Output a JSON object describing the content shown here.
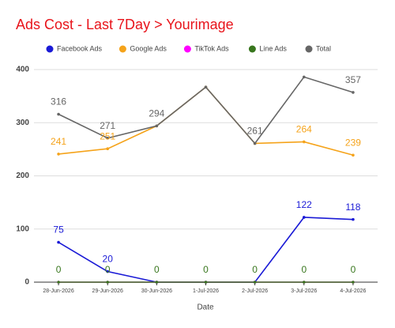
{
  "chart_data": {
    "type": "line",
    "title": "Ads Cost - Last 7Day > Yourimage",
    "x_label": "Date",
    "categories": [
      "28-Jun-2026",
      "29-Jun-2026",
      "30-Jun-2026",
      "1-Jul-2026",
      "2-Jul-2026",
      "3-Jul-2026",
      "4-Jul-2026"
    ],
    "series": [
      {
        "name": "Facebook Ads",
        "color": "#1a1ad6",
        "values": [
          75,
          20,
          0,
          0,
          0,
          122,
          118
        ],
        "value_labels": [
          "75",
          "20",
          null,
          null,
          null,
          "122",
          "118"
        ]
      },
      {
        "name": "Google Ads",
        "color": "#f5a31a",
        "values": [
          241,
          251,
          294,
          367,
          261,
          264,
          239
        ],
        "value_labels": [
          "241",
          "251",
          null,
          null,
          null,
          "264",
          "239"
        ]
      },
      {
        "name": "TikTok Ads",
        "color": "#ff00ff",
        "values": [
          0,
          0,
          0,
          0,
          0,
          0,
          0
        ],
        "value_labels": [
          null,
          null,
          null,
          null,
          null,
          null,
          null
        ]
      },
      {
        "name": "Line Ads",
        "color": "#38761d",
        "values": [
          0,
          0,
          0,
          0,
          0,
          0,
          0
        ],
        "value_labels": [
          "0",
          "0",
          "0",
          "0",
          "0",
          "0",
          "0"
        ]
      },
      {
        "name": "Total",
        "color": "#666666",
        "values": [
          316,
          271,
          294,
          367,
          261,
          386,
          357
        ],
        "value_labels": [
          "316",
          "271",
          "294",
          null,
          "261",
          null,
          "357"
        ]
      }
    ],
    "ylim": [
      0,
      400
    ],
    "yticks": [
      0,
      100,
      200,
      300,
      400
    ],
    "grid": true,
    "legend": "top"
  }
}
